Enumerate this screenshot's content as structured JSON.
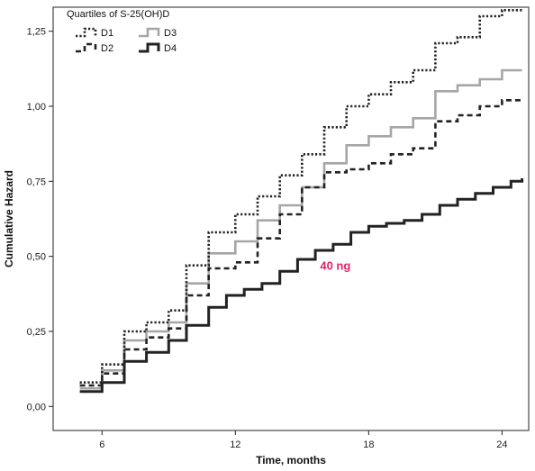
{
  "chart_data": {
    "type": "line",
    "step": true,
    "xlabel": "Time, months",
    "ylabel": "Cumulative Hazard",
    "xlim": [
      3.8,
      25.2
    ],
    "ylim": [
      -0.08,
      1.33
    ],
    "xticks": [
      6,
      12,
      18,
      24
    ],
    "xtick_labels": [
      "6",
      "12",
      "18",
      "24"
    ],
    "yticks": [
      0.0,
      0.25,
      0.5,
      0.75,
      1.0,
      1.25
    ],
    "ytick_labels": [
      "0,00",
      "0,25",
      "0,50",
      "0,75",
      "1,00",
      "1,25"
    ],
    "grid": false,
    "legend": {
      "title": "Quartiles of S-25(OH)D",
      "position": "top-left",
      "entries": [
        "D1",
        "D2",
        "D3",
        "D4"
      ]
    },
    "series": [
      {
        "name": "D1",
        "color": "#222222",
        "style": "dotted",
        "x": [
          5.0,
          6.0,
          7.0,
          8.0,
          9.0,
          9.8,
          10.8,
          12.0,
          13.0,
          14.0,
          15.0,
          16.0,
          17.0,
          18.0,
          19.0,
          20.0,
          21.0,
          22.0,
          23.0,
          24.0,
          24.9
        ],
        "y": [
          0.08,
          0.14,
          0.25,
          0.28,
          0.32,
          0.47,
          0.58,
          0.64,
          0.7,
          0.77,
          0.84,
          0.93,
          1.0,
          1.04,
          1.08,
          1.12,
          1.21,
          1.23,
          1.3,
          1.32,
          1.32
        ]
      },
      {
        "name": "D2",
        "color": "#222222",
        "style": "dashed",
        "x": [
          5.0,
          6.0,
          7.0,
          8.0,
          9.0,
          9.8,
          10.8,
          12.0,
          13.0,
          14.0,
          15.0,
          16.0,
          17.0,
          18.0,
          19.0,
          20.0,
          21.0,
          22.0,
          23.0,
          24.0,
          24.9
        ],
        "y": [
          0.07,
          0.11,
          0.19,
          0.23,
          0.26,
          0.37,
          0.46,
          0.48,
          0.56,
          0.64,
          0.73,
          0.78,
          0.79,
          0.81,
          0.84,
          0.86,
          0.95,
          0.97,
          1.0,
          1.02,
          1.02
        ]
      },
      {
        "name": "D3",
        "color": "#a6a6a6",
        "style": "solid",
        "x": [
          5.0,
          6.0,
          7.0,
          8.0,
          9.0,
          9.8,
          10.8,
          12.0,
          13.0,
          14.0,
          15.0,
          16.0,
          17.0,
          18.0,
          19.0,
          20.0,
          21.0,
          22.0,
          23.0,
          24.0,
          24.9
        ],
        "y": [
          0.06,
          0.12,
          0.22,
          0.25,
          0.28,
          0.41,
          0.51,
          0.55,
          0.62,
          0.67,
          0.73,
          0.81,
          0.87,
          0.9,
          0.93,
          0.96,
          1.05,
          1.07,
          1.09,
          1.12,
          1.12
        ]
      },
      {
        "name": "D4",
        "color": "#222222",
        "style": "solid-thick",
        "x": [
          5.0,
          6.0,
          7.0,
          8.0,
          9.0,
          9.8,
          10.8,
          11.6,
          12.4,
          13.2,
          14.0,
          14.8,
          15.6,
          16.4,
          17.2,
          18.0,
          18.8,
          19.6,
          20.4,
          21.2,
          22.0,
          22.8,
          23.6,
          24.4,
          24.9
        ],
        "y": [
          0.05,
          0.08,
          0.15,
          0.18,
          0.22,
          0.27,
          0.33,
          0.37,
          0.39,
          0.41,
          0.45,
          0.49,
          0.52,
          0.54,
          0.58,
          0.6,
          0.61,
          0.62,
          0.64,
          0.67,
          0.69,
          0.71,
          0.73,
          0.75,
          0.76
        ]
      }
    ],
    "annotations": [
      {
        "text": "40 ng",
        "x": 16.5,
        "y": 0.47,
        "color": "#e0246a"
      }
    ]
  }
}
